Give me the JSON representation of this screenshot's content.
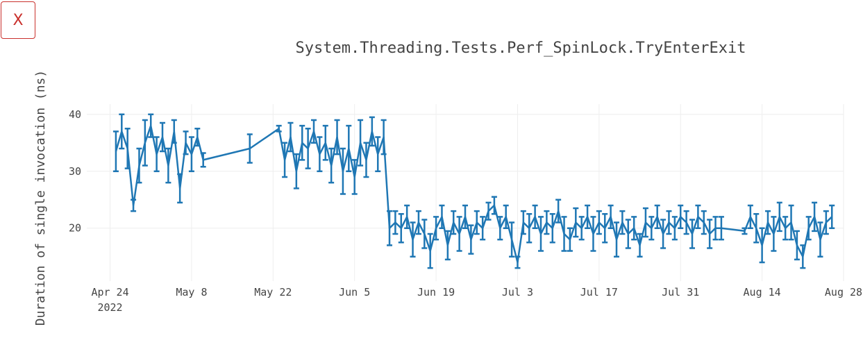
{
  "close_button": "X",
  "chart_data": {
    "type": "line_errorbar",
    "title": "System.Threading.Tests.Perf_SpinLock.TryEnterExit",
    "y_label": "Duration of single invocation (ns)",
    "x": [
      "2022-04-25",
      "2022-04-26",
      "2022-04-27",
      "2022-04-28",
      "2022-04-29",
      "2022-04-30",
      "2022-05-01",
      "2022-05-02",
      "2022-05-03",
      "2022-05-04",
      "2022-05-05",
      "2022-05-06",
      "2022-05-07",
      "2022-05-08",
      "2022-05-09",
      "2022-05-10",
      "2022-05-18",
      "2022-05-23",
      "2022-05-24",
      "2022-05-25",
      "2022-05-26",
      "2022-05-27",
      "2022-05-28",
      "2022-05-29",
      "2022-05-30",
      "2022-05-31",
      "2022-06-01",
      "2022-06-02",
      "2022-06-03",
      "2022-06-04",
      "2022-06-05",
      "2022-06-06",
      "2022-06-07",
      "2022-06-08",
      "2022-06-09",
      "2022-06-10",
      "2022-06-11",
      "2022-06-12",
      "2022-06-13",
      "2022-06-14",
      "2022-06-15",
      "2022-06-16",
      "2022-06-17",
      "2022-06-18",
      "2022-06-19",
      "2022-06-20",
      "2022-06-21",
      "2022-06-22",
      "2022-06-23",
      "2022-06-24",
      "2022-06-25",
      "2022-06-26",
      "2022-06-27",
      "2022-06-28",
      "2022-06-29",
      "2022-06-30",
      "2022-07-01",
      "2022-07-02",
      "2022-07-03",
      "2022-07-04",
      "2022-07-05",
      "2022-07-06",
      "2022-07-07",
      "2022-07-08",
      "2022-07-09",
      "2022-07-10",
      "2022-07-11",
      "2022-07-12",
      "2022-07-13",
      "2022-07-14",
      "2022-07-15",
      "2022-07-16",
      "2022-07-17",
      "2022-07-18",
      "2022-07-19",
      "2022-07-20",
      "2022-07-21",
      "2022-07-22",
      "2022-07-23",
      "2022-07-24",
      "2022-07-25",
      "2022-07-26",
      "2022-07-27",
      "2022-07-28",
      "2022-07-29",
      "2022-07-30",
      "2022-07-31",
      "2022-08-01",
      "2022-08-02",
      "2022-08-03",
      "2022-08-04",
      "2022-08-05",
      "2022-08-06",
      "2022-08-07",
      "2022-08-11",
      "2022-08-12",
      "2022-08-13",
      "2022-08-14",
      "2022-08-15",
      "2022-08-16",
      "2022-08-17",
      "2022-08-18",
      "2022-08-19",
      "2022-08-20",
      "2022-08-21",
      "2022-08-22",
      "2022-08-23",
      "2022-08-24",
      "2022-08-25",
      "2022-08-26"
    ],
    "series": [
      {
        "name": "TryEnterExit",
        "color": "#1f77b4",
        "values": [
          33.5,
          37,
          34,
          24,
          31,
          35,
          38,
          33,
          36,
          31,
          37,
          27,
          35,
          33,
          36,
          32,
          34,
          37.5,
          32,
          36,
          30,
          35,
          34,
          37,
          33,
          35,
          31,
          36,
          30,
          34,
          29,
          35,
          32,
          37,
          33,
          36,
          20,
          21,
          20,
          22,
          18,
          21,
          19,
          16,
          20,
          22,
          17,
          21,
          19,
          22,
          18,
          21,
          20,
          23,
          24,
          20,
          22,
          18,
          14,
          21,
          20,
          22,
          19,
          21,
          20,
          23,
          19,
          18,
          21,
          20,
          22,
          19,
          21,
          20,
          22,
          18,
          21,
          19,
          20,
          17,
          21,
          20,
          22,
          19,
          21,
          20,
          22,
          21,
          19,
          22,
          21,
          19,
          20,
          20,
          19.5,
          22,
          20,
          17,
          21,
          19,
          22,
          20,
          21,
          17,
          15,
          20,
          22,
          18,
          21,
          22
        ],
        "errors": [
          3.5,
          3,
          3.5,
          1,
          3,
          4,
          2,
          3,
          2.5,
          3,
          2,
          2.5,
          2,
          3,
          1.5,
          1.2,
          2.5,
          0.5,
          3,
          2.5,
          3,
          3,
          3.5,
          2,
          3,
          3,
          3,
          3,
          4,
          4,
          3,
          4,
          3,
          2.5,
          3,
          3,
          3,
          2,
          2.5,
          2,
          3,
          2,
          2.5,
          3,
          2,
          2,
          2.5,
          2,
          3,
          2,
          2.5,
          2,
          2,
          1.5,
          1.5,
          2,
          2,
          3,
          1,
          2,
          2.5,
          2,
          3,
          2,
          2.5,
          2,
          3,
          2,
          2.5,
          2,
          2,
          3,
          2,
          2.5,
          2,
          3,
          2,
          2.5,
          2,
          2,
          2.5,
          2,
          2,
          2.5,
          2,
          2,
          2,
          2,
          2.5,
          2,
          2,
          2.5,
          2,
          2,
          0.5,
          2,
          2.5,
          3,
          2,
          3,
          2.5,
          2,
          3,
          2.5,
          2,
          2,
          2.5,
          3,
          2,
          2
        ]
      }
    ],
    "xlim": [
      "2022-04-20",
      "2022-08-28"
    ],
    "xticks": [
      {
        "value": "2022-04-24",
        "label": "Apr 24\n2022"
      },
      {
        "value": "2022-05-08",
        "label": "May 8"
      },
      {
        "value": "2022-05-22",
        "label": "May 22"
      },
      {
        "value": "2022-06-05",
        "label": "Jun 5"
      },
      {
        "value": "2022-06-19",
        "label": "Jun 19"
      },
      {
        "value": "2022-07-03",
        "label": "Jul 3"
      },
      {
        "value": "2022-07-17",
        "label": "Jul 17"
      },
      {
        "value": "2022-07-31",
        "label": "Jul 31"
      },
      {
        "value": "2022-08-14",
        "label": "Aug 14"
      },
      {
        "value": "2022-08-28",
        "label": "Aug 28"
      }
    ],
    "ylim": [
      10.7,
      41.8
    ],
    "yticks": [
      20,
      30,
      40
    ],
    "grid": true
  }
}
